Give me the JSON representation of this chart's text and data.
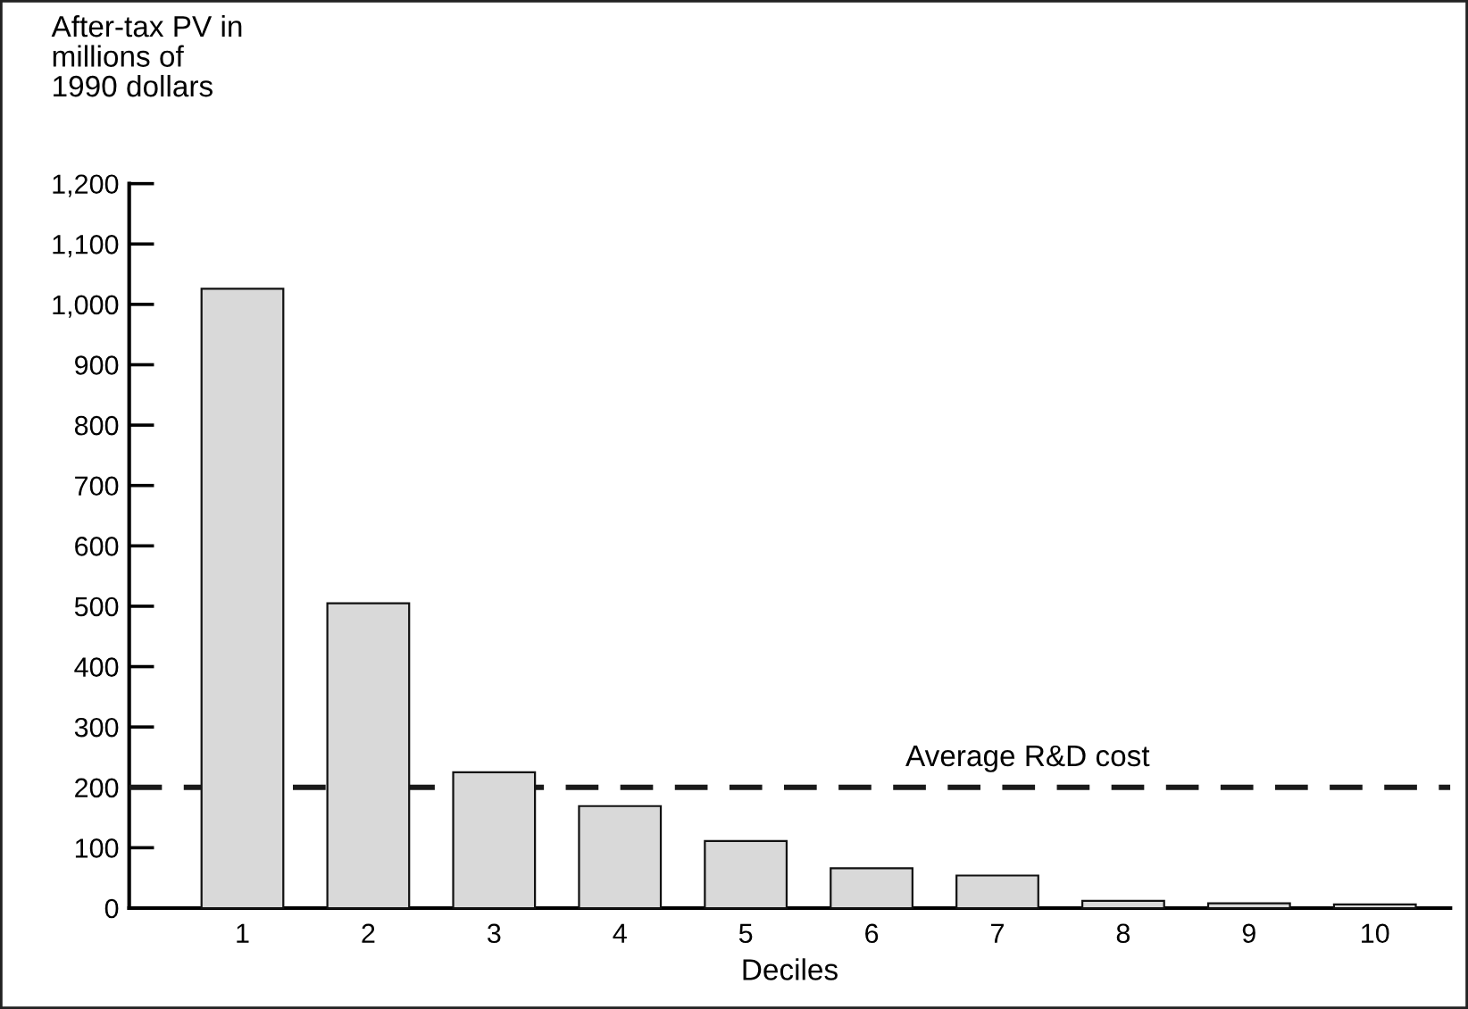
{
  "chart_data": {
    "type": "bar",
    "ylabel": "After-tax PV in\nmillions of\n1990 dollars",
    "xlabel": "Deciles",
    "categories": [
      "1",
      "2",
      "3",
      "4",
      "5",
      "6",
      "7",
      "8",
      "9",
      "10"
    ],
    "values": [
      1026,
      505,
      225,
      169,
      111,
      66,
      54,
      12,
      8,
      6
    ],
    "color": "#d9d9d9",
    "ylim": [
      0,
      1200
    ],
    "yticks": [
      {
        "value": 0,
        "label": "0"
      },
      {
        "value": 100,
        "label": "100"
      },
      {
        "value": 200,
        "label": "200"
      },
      {
        "value": 300,
        "label": "300"
      },
      {
        "value": 400,
        "label": "400"
      },
      {
        "value": 500,
        "label": "500"
      },
      {
        "value": 600,
        "label": "600"
      },
      {
        "value": 700,
        "label": "700"
      },
      {
        "value": 800,
        "label": "800"
      },
      {
        "value": 900,
        "label": "900"
      },
      {
        "value": 1000,
        "label": "1,000"
      },
      {
        "value": 1100,
        "label": "1,100"
      },
      {
        "value": 1200,
        "label": "1,200"
      }
    ],
    "ref_lines": [
      {
        "axis": "y",
        "value": 200,
        "label": "Average R&D cost",
        "color": "#1a1a1a",
        "line_style": "dashed"
      }
    ],
    "grid": false,
    "legend": false
  }
}
